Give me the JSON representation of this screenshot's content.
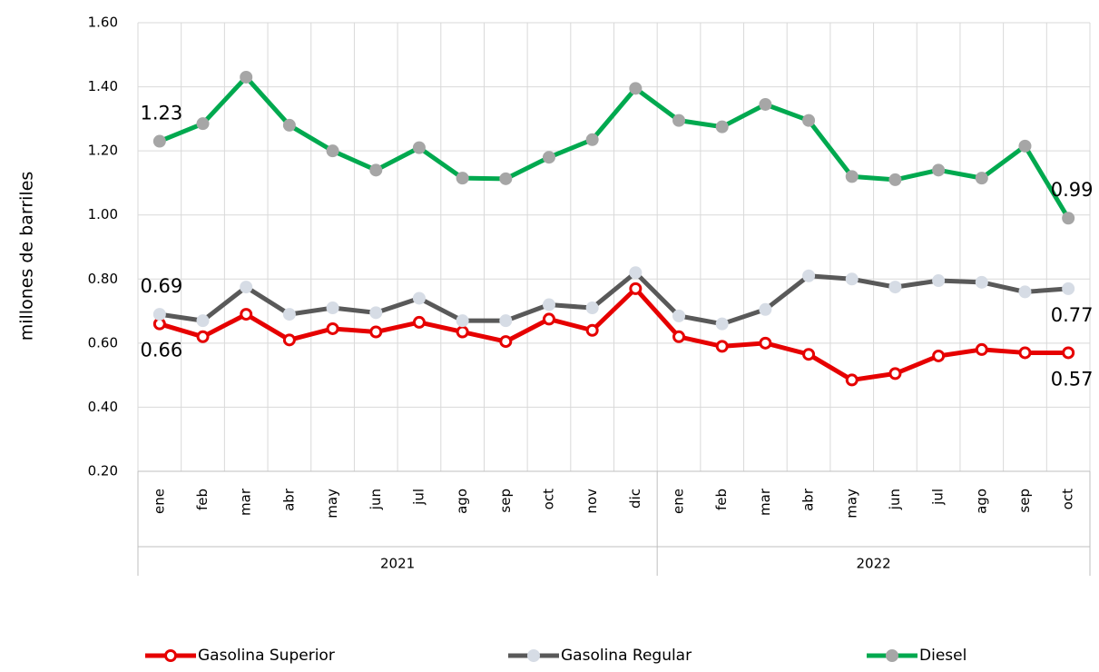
{
  "chart_data": {
    "type": "line",
    "y_label": "millones de barriles",
    "categories": [
      "ene",
      "feb",
      "mar",
      "abr",
      "may",
      "jun",
      "jul",
      "ago",
      "sep",
      "oct",
      "nov",
      "dic",
      "ene",
      "feb",
      "mar",
      "abr",
      "may",
      "jun",
      "jul",
      "ago",
      "sep",
      "oct"
    ],
    "groups": [
      {
        "label": "2021",
        "count": 12
      },
      {
        "label": "2022",
        "count": 10
      }
    ],
    "ylim": [
      0.2,
      1.6
    ],
    "yticks": [
      {
        "value": 0.2,
        "label": "0.20"
      },
      {
        "value": 0.4,
        "label": "0.40"
      },
      {
        "value": 0.6,
        "label": "0.60"
      },
      {
        "value": 0.8,
        "label": "0.80"
      },
      {
        "value": 1.0,
        "label": "1.00"
      },
      {
        "value": 1.2,
        "label": "1.20"
      },
      {
        "value": 1.4,
        "label": "1.40"
      },
      {
        "value": 1.6,
        "label": "1.60"
      }
    ],
    "grid": true,
    "legend": "bottom",
    "series": [
      {
        "name": "Gasolina Superior",
        "color": "#e60000",
        "marker_color": "#e60000",
        "values": [
          0.66,
          0.62,
          0.69,
          0.61,
          0.645,
          0.635,
          0.665,
          0.635,
          0.605,
          0.675,
          0.64,
          0.77,
          0.62,
          0.59,
          0.6,
          0.565,
          0.485,
          0.505,
          0.56,
          0.58,
          0.57,
          0.57
        ],
        "value_labels": [
          "0.66",
          null,
          null,
          null,
          null,
          null,
          null,
          null,
          null,
          null,
          null,
          null,
          null,
          null,
          null,
          null,
          null,
          null,
          null,
          null,
          null,
          "0.57"
        ]
      },
      {
        "name": "Gasolina Regular",
        "color": "#595959",
        "marker_color": "#d6dce5",
        "values": [
          0.69,
          0.67,
          0.775,
          0.69,
          0.71,
          0.695,
          0.74,
          0.67,
          0.67,
          0.72,
          0.71,
          0.82,
          0.685,
          0.66,
          0.705,
          0.81,
          0.8,
          0.775,
          0.795,
          0.79,
          0.76,
          0.77
        ],
        "value_labels": [
          "0.69",
          null,
          null,
          null,
          null,
          null,
          null,
          null,
          null,
          null,
          null,
          null,
          null,
          null,
          null,
          null,
          null,
          null,
          null,
          null,
          null,
          "0.77"
        ]
      },
      {
        "name": "Diesel",
        "color": "#00a94f",
        "marker_color": "#a6a6a6",
        "values": [
          1.23,
          1.285,
          1.43,
          1.28,
          1.2,
          1.14,
          1.21,
          1.115,
          1.113,
          1.18,
          1.235,
          1.395,
          1.295,
          1.275,
          1.345,
          1.295,
          1.12,
          1.11,
          1.14,
          1.115,
          1.215,
          0.99
        ],
        "value_labels": [
          "1.23",
          null,
          null,
          null,
          null,
          null,
          null,
          null,
          null,
          null,
          null,
          null,
          null,
          null,
          null,
          null,
          null,
          null,
          null,
          null,
          null,
          "0.99"
        ]
      }
    ]
  }
}
